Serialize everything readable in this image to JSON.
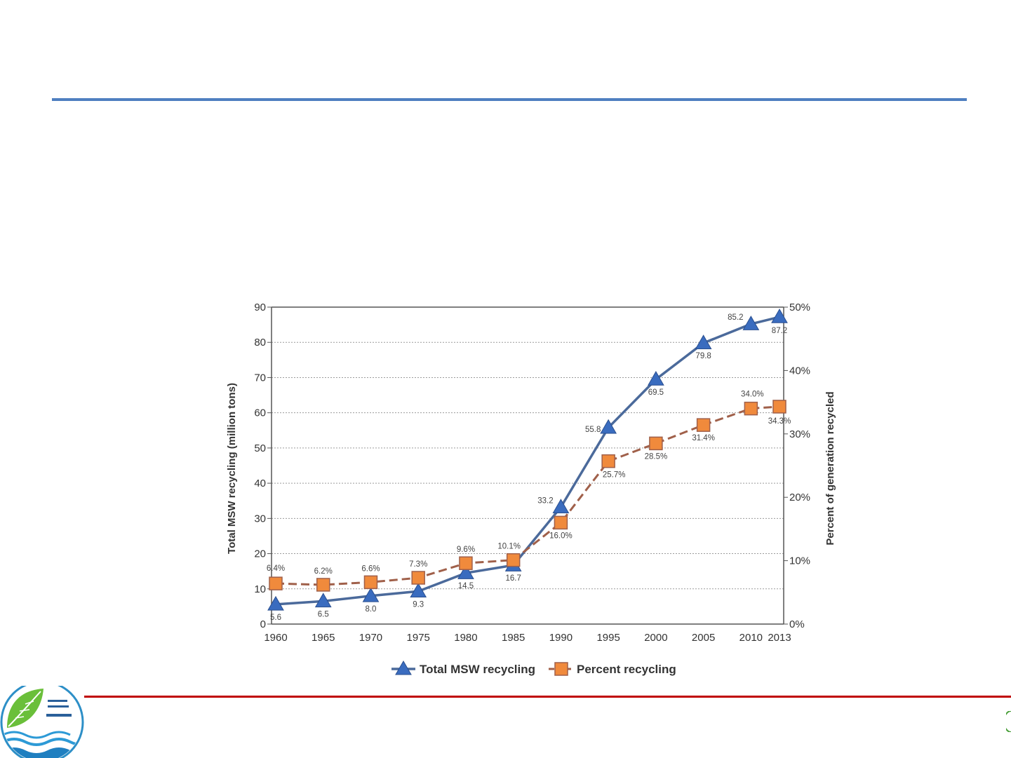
{
  "slide": {
    "logo_icon": "leaf-water-logo-icon",
    "colors": {
      "top_rule": "#4f7fc0",
      "bottom_rule": "#c00000"
    }
  },
  "chart_data": {
    "type": "line",
    "categories": [
      "1960",
      "1965",
      "1970",
      "1975",
      "1980",
      "1985",
      "1990",
      "1995",
      "2000",
      "2005",
      "2010",
      "2013"
    ],
    "x_numeric": [
      1960,
      1965,
      1970,
      1975,
      1980,
      1985,
      1990,
      1995,
      2000,
      2005,
      2010,
      2013
    ],
    "ylabel_left": "Total MSW recycling (million tons)",
    "ylabel_right": "Percent of generation recycled",
    "ylim_left": [
      0,
      90
    ],
    "ylim_right": [
      0,
      50
    ],
    "yticks_left": [
      "0",
      "10",
      "20",
      "30",
      "40",
      "50",
      "60",
      "70",
      "80",
      "90"
    ],
    "yticks_right": [
      "0%",
      "10%",
      "20%",
      "30%",
      "40%",
      "50%"
    ],
    "grid": "horizontal dotted",
    "legend_position": "bottom-center",
    "series": [
      {
        "name": "Total MSW recycling",
        "axis": "left",
        "marker": "triangle",
        "line_style": "solid",
        "color": "#3a6cbf",
        "line_color": "#4b6a9b",
        "values": [
          5.6,
          6.5,
          8.0,
          9.3,
          14.5,
          16.7,
          33.2,
          55.8,
          69.5,
          79.8,
          85.2,
          87.2
        ],
        "labels": [
          "5.6",
          "6.5",
          "8.0",
          "9.3",
          "14.5",
          "16.7",
          "33.2",
          "55.8",
          "69.5",
          "79.8",
          "85.2",
          "87.2"
        ]
      },
      {
        "name": "Percent recycling",
        "axis": "right",
        "marker": "square",
        "line_style": "dashed",
        "color": "#f08a3c",
        "line_color": "#a0604a",
        "values": [
          6.4,
          6.2,
          6.6,
          7.3,
          9.6,
          10.1,
          16.0,
          25.7,
          28.5,
          31.4,
          34.0,
          34.3
        ],
        "labels": [
          "6.4%",
          "6.2%",
          "6.6%",
          "7.3%",
          "9.6%",
          "10.1%",
          "16.0%",
          "25.7%",
          "28.5%",
          "31.4%",
          "34.0%",
          "34.3%"
        ]
      }
    ]
  }
}
